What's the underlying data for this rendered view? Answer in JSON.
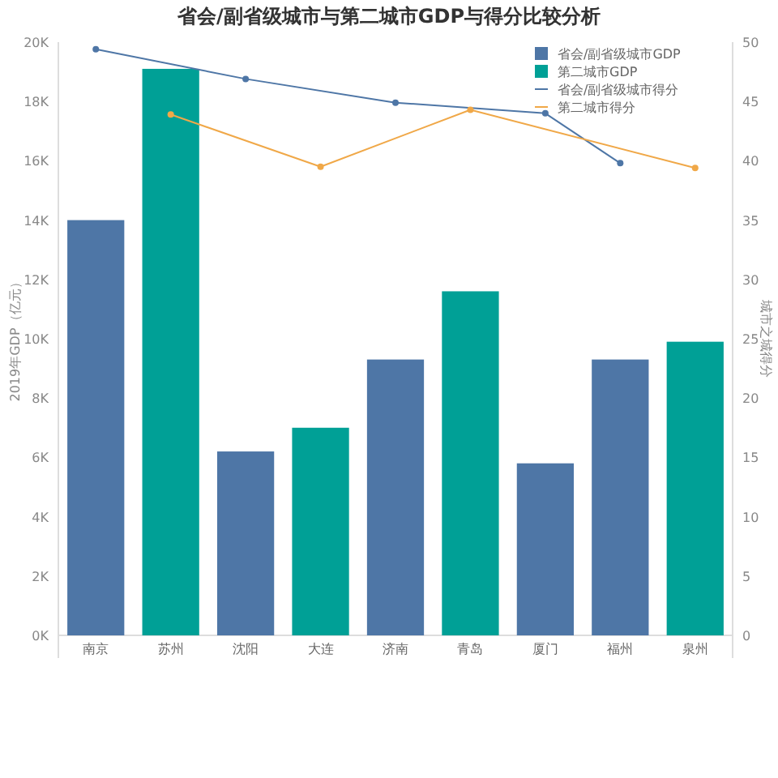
{
  "chart_data": {
    "type": "bar",
    "title": "省会/副省级城市与第二城市GDP与得分比较分析",
    "ylabel": "2019年GDP（亿元）",
    "y2label": "城市之城得分",
    "categories": [
      "南京",
      "苏州",
      "沈阳",
      "大连",
      "济南",
      "青岛",
      "厦门",
      "福州",
      "泉州"
    ],
    "series": [
      {
        "name": "省会/副省级城市GDP",
        "color": "#4e76a6",
        "values": [
          14000,
          null,
          6200,
          null,
          9300,
          null,
          5800,
          9300,
          null
        ]
      },
      {
        "name": "第二城市GDP",
        "color": "#00a096",
        "values": [
          null,
          19100,
          null,
          7000,
          null,
          11600,
          null,
          null,
          9900
        ]
      },
      {
        "name": "省会/副省级城市得分",
        "type": "line",
        "axis": "y2",
        "color": "#4e76a6",
        "marker": "circle",
        "x": [
          "南京",
          "沈阳",
          "济南",
          "厦门",
          "福州"
        ],
        "values": [
          49.4,
          46.9,
          44.9,
          44.0,
          39.8
        ]
      },
      {
        "name": "第二城市得分",
        "type": "line",
        "axis": "y2",
        "color": "#f0a848",
        "marker": "circle",
        "x": [
          "苏州",
          "大连",
          "青岛",
          "泉州"
        ],
        "values": [
          43.9,
          39.5,
          44.3,
          39.4
        ]
      }
    ],
    "ylim": [
      0,
      20000
    ],
    "yticks": [
      {
        "value": 0,
        "label": "0K"
      },
      {
        "value": 2000,
        "label": "2K"
      },
      {
        "value": 4000,
        "label": "4K"
      },
      {
        "value": 6000,
        "label": "6K"
      },
      {
        "value": 8000,
        "label": "8K"
      },
      {
        "value": 10000,
        "label": "10K"
      },
      {
        "value": 12000,
        "label": "12K"
      },
      {
        "value": 14000,
        "label": "14K"
      },
      {
        "value": 16000,
        "label": "16K"
      },
      {
        "value": 18000,
        "label": "18K"
      },
      {
        "value": 20000,
        "label": "20K"
      }
    ],
    "y2lim": [
      0,
      50
    ],
    "y2ticks": [
      0,
      5,
      10,
      15,
      20,
      25,
      30,
      35,
      40,
      45,
      50
    ],
    "legend": "top right",
    "grid": false
  }
}
